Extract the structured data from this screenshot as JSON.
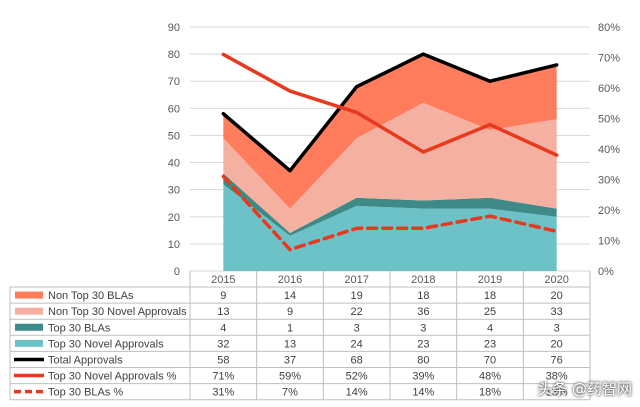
{
  "chart_data": {
    "type": "area",
    "categories": [
      "2015",
      "2016",
      "2017",
      "2018",
      "2019",
      "2020"
    ],
    "ylim_left": [
      0,
      90
    ],
    "yticks_left": [
      "0",
      "10",
      "20",
      "30",
      "40",
      "50",
      "60",
      "70",
      "80",
      "90"
    ],
    "ylim_right": [
      0,
      0.8
    ],
    "yticks_right": [
      "0%",
      "10%",
      "20%",
      "30%",
      "40%",
      "50%",
      "60%",
      "70%",
      "80%"
    ],
    "grid": true,
    "series": [
      {
        "name": "Non Top 30 BLAs",
        "kind": "area",
        "axis": "left",
        "color": "#ff7c5c",
        "values": [
          9,
          14,
          19,
          18,
          18,
          20
        ],
        "labels": [
          "9",
          "14",
          "19",
          "18",
          "18",
          "20"
        ]
      },
      {
        "name": "Non Top 30 Novel Approvals",
        "kind": "area",
        "axis": "left",
        "color": "#f4b0a1",
        "values": [
          13,
          9,
          22,
          36,
          25,
          33
        ],
        "labels": [
          "13",
          "9",
          "22",
          "36",
          "25",
          "33"
        ]
      },
      {
        "name": "Top 30 BLAs",
        "kind": "area",
        "axis": "left",
        "color": "#3d8a88",
        "values": [
          4,
          1,
          3,
          3,
          4,
          3
        ],
        "labels": [
          "4",
          "1",
          "3",
          "3",
          "4",
          "3"
        ]
      },
      {
        "name": "Top 30 Novel Approvals",
        "kind": "area",
        "axis": "left",
        "color": "#6cc2c6",
        "values": [
          32,
          13,
          24,
          23,
          23,
          20
        ],
        "labels": [
          "32",
          "13",
          "24",
          "23",
          "23",
          "20"
        ]
      },
      {
        "name": "Total Approvals",
        "kind": "line",
        "axis": "left",
        "color": "#000000",
        "values": [
          58,
          37,
          68,
          80,
          70,
          76
        ],
        "labels": [
          "58",
          "37",
          "68",
          "80",
          "70",
          "76"
        ]
      },
      {
        "name": "Top 30 Novel Approvals %",
        "kind": "line",
        "axis": "right",
        "color": "#e8391e",
        "values": [
          0.71,
          0.59,
          0.52,
          0.39,
          0.48,
          0.38
        ],
        "labels": [
          "71%",
          "59%",
          "52%",
          "39%",
          "48%",
          "38%"
        ]
      },
      {
        "name": "Top 30 BLAs %",
        "kind": "dashed",
        "axis": "right",
        "color": "#e8391e",
        "values": [
          0.31,
          0.07,
          0.14,
          0.14,
          0.18,
          0.13
        ],
        "labels": [
          "31%",
          "7%",
          "14%",
          "14%",
          "18%",
          "13%"
        ]
      }
    ]
  },
  "watermark": "头条 @药智网"
}
